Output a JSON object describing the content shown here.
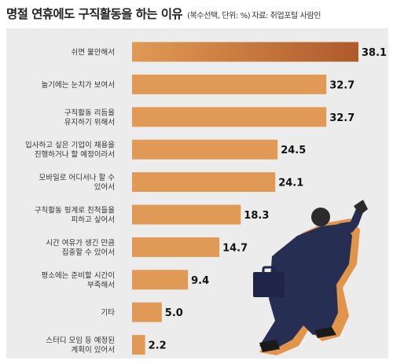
{
  "header": {
    "title": "명절 연휴에도 구직활동을 하는 이유",
    "subtitle": "(복수선택, 단위: %)",
    "source": "자료: 취업포털 사람인"
  },
  "chart_data": {
    "type": "bar",
    "orientation": "horizontal",
    "title": "명절 연휴에도 구직활동을 하는 이유",
    "categories": [
      [
        "쉬면 불안해서"
      ],
      [
        "놀기에는 눈치가 보여서"
      ],
      [
        "구직활동 리듬을",
        "유지하기 위해서"
      ],
      [
        "입사하고 싶은 기업이 채용을",
        "진행하거나 할 예정이라서"
      ],
      [
        "모바일로 어디서나 할 수",
        "있어서"
      ],
      [
        "구직활동 핑계로 친척들을",
        "피하고 싶어서"
      ],
      [
        "시간 여유가 생긴 만큼",
        "집중할 수 있어서"
      ],
      [
        "평소에는 준비할 시간이",
        "부족해서"
      ],
      [
        "기타"
      ],
      [
        "스터디 모임 등 예정된",
        "계획이 있어서"
      ]
    ],
    "values": [
      38.1,
      32.7,
      32.7,
      24.5,
      24.1,
      18.3,
      14.7,
      9.4,
      5.0,
      2.2
    ],
    "value_labels": [
      "38.1",
      "32.7",
      "32.7",
      "24.5",
      "24.1",
      "18.3",
      "14.7",
      "9.4",
      "5.0",
      "2.2"
    ],
    "units": "%",
    "xlim": [
      0,
      38.1
    ],
    "grid": false,
    "colors": {
      "bar": "#e09a55",
      "bar_top": "#ae5a2a",
      "panel": "#ececec"
    }
  },
  "illustration": {
    "icon": "running-businessman-with-briefcase-icon"
  }
}
